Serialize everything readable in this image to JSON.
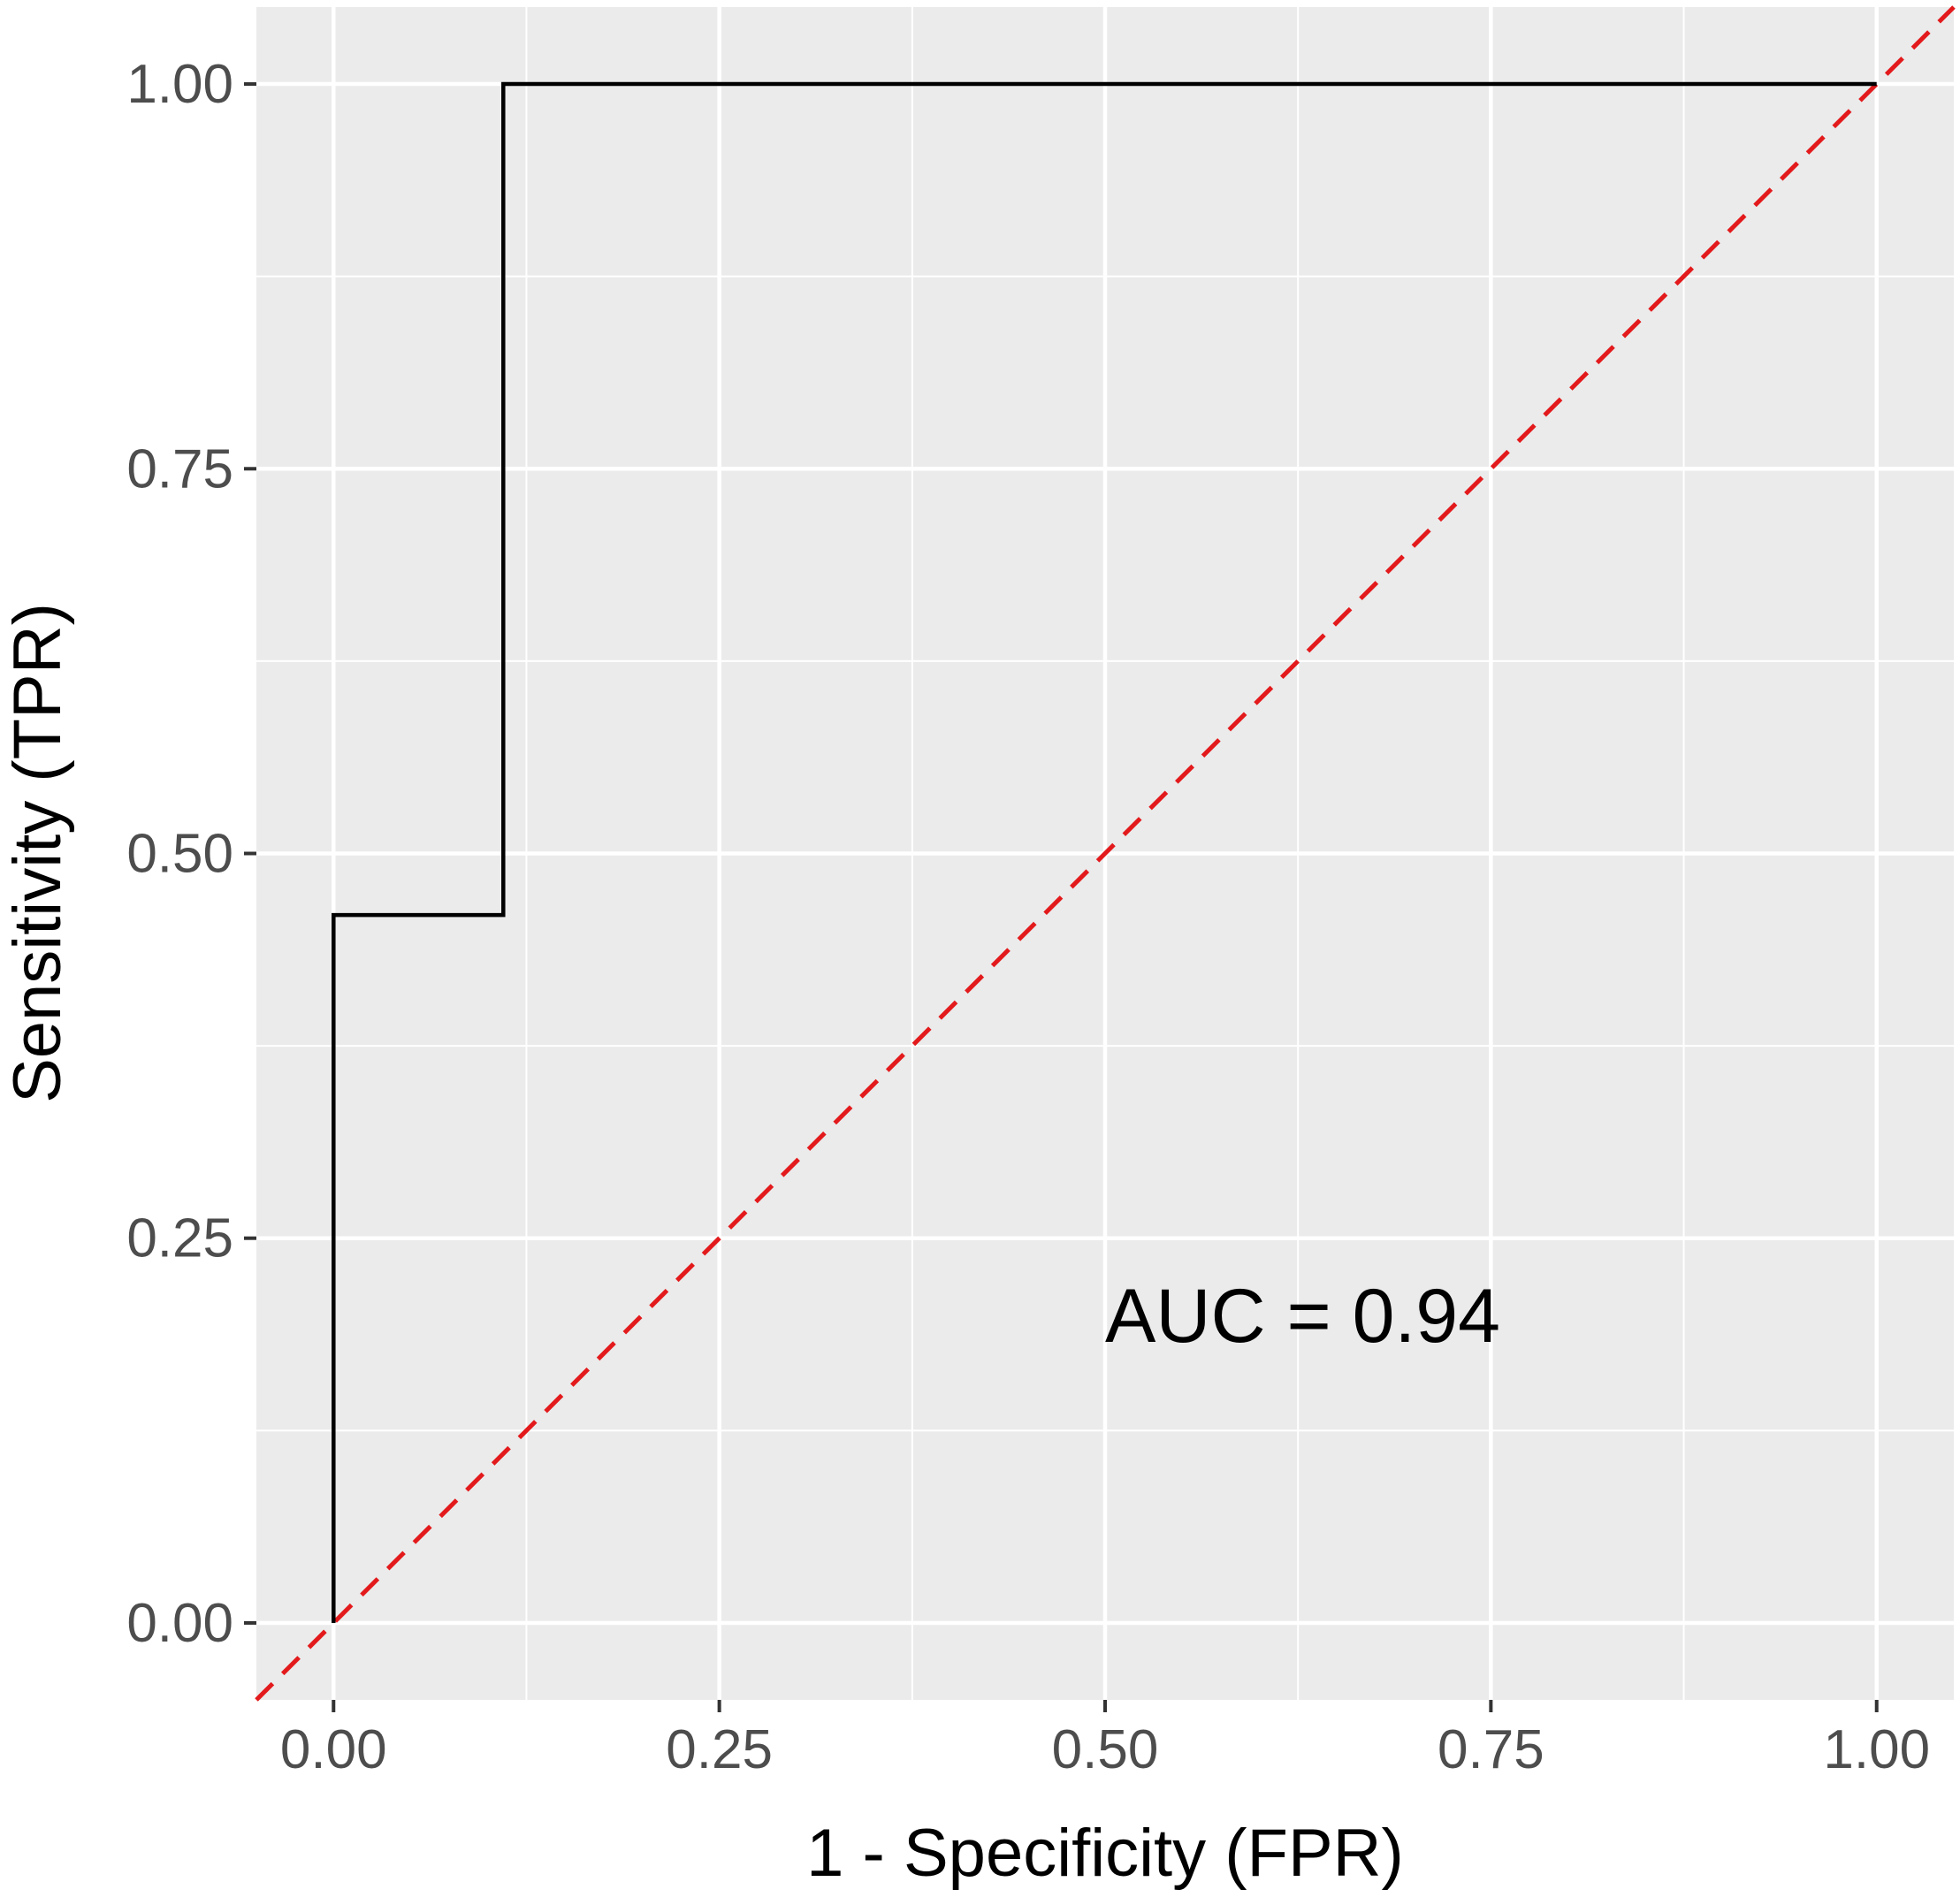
{
  "chart_data": {
    "type": "line",
    "title": "",
    "xlabel": "1 - Specificity (FPR)",
    "ylabel": "Sensitivity (TPR)",
    "xlim": [
      -0.05,
      1.05
    ],
    "ylim": [
      -0.05,
      1.05
    ],
    "x_ticks": [
      0,
      0.25,
      0.5,
      0.75,
      1
    ],
    "y_ticks": [
      0,
      0.25,
      0.5,
      0.75,
      1
    ],
    "x_tick_labels": [
      "0.00",
      "0.25",
      "0.50",
      "0.75",
      "1.00"
    ],
    "y_tick_labels": [
      "0.00",
      "0.25",
      "0.50",
      "0.75",
      "1.00"
    ],
    "grid": true,
    "series": [
      {
        "style": "step",
        "color": "#000000",
        "x": [
          0,
          0,
          0.11,
          0.11,
          1
        ],
        "y": [
          0,
          0.46,
          0.46,
          1,
          1
        ]
      },
      {
        "style": "dashed",
        "color": "#e31a1c",
        "x": [
          -0.05,
          1.05
        ],
        "y": [
          -0.05,
          1.05
        ]
      }
    ],
    "annotations": [
      {
        "text": "AUC = 0.94",
        "x": 0.5,
        "y": 0.2
      }
    ],
    "panel_background": "#ebebeb",
    "grid_color": "#ffffff"
  }
}
